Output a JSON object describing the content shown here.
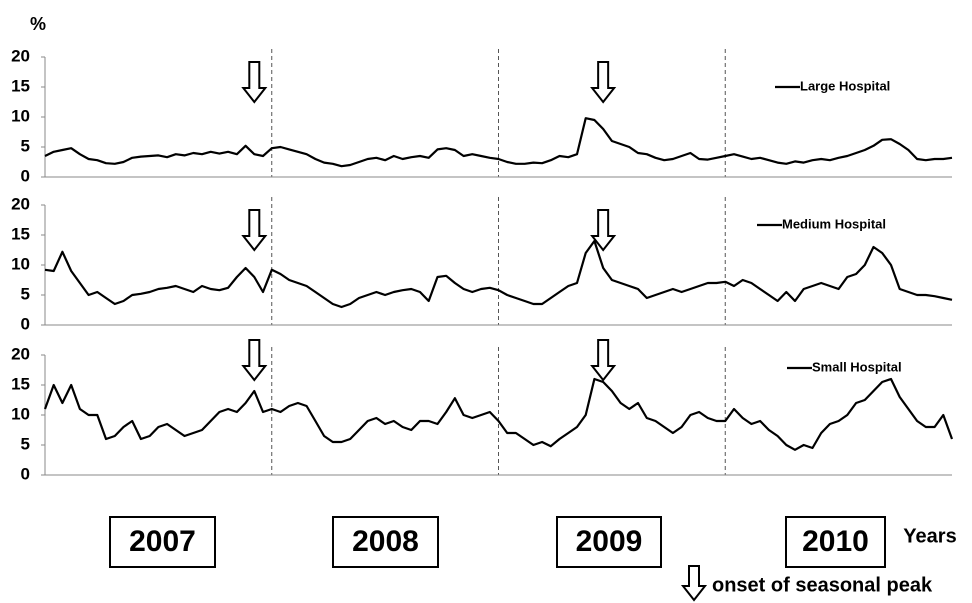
{
  "y_unit_label": "%",
  "x_label": "Years",
  "year_labels": [
    "2007",
    "2008",
    "2009",
    "2010"
  ],
  "onset_label": "onset of seasonal peak",
  "chart_data": [
    {
      "type": "line",
      "ylim": [
        0,
        20
      ],
      "yticks": [
        0,
        5,
        10,
        15,
        20
      ],
      "onset_x": [
        24,
        64
      ],
      "series": [
        {
          "name": "Large Hospital",
          "color": "#000000",
          "values": [
            3.5,
            4.2,
            4.5,
            4.8,
            3.8,
            3,
            2.8,
            2.3,
            2.2,
            2.5,
            3.2,
            3.4,
            3.5,
            3.6,
            3.3,
            3.8,
            3.6,
            4,
            3.8,
            4.2,
            3.9,
            4.2,
            3.8,
            5.2,
            3.8,
            3.5,
            4.8,
            5,
            4.6,
            4.2,
            3.8,
            3,
            2.4,
            2.2,
            1.8,
            2,
            2.5,
            3,
            3.2,
            2.8,
            3.5,
            3,
            3.3,
            3.5,
            3.2,
            4.6,
            4.8,
            4.5,
            3.5,
            3.8,
            3.5,
            3.2,
            3,
            2.5,
            2.2,
            2.2,
            2.4,
            2.3,
            2.8,
            3.5,
            3.3,
            3.8,
            9.8,
            9.5,
            8,
            6,
            5.5,
            5,
            4,
            3.8,
            3.2,
            2.8,
            3,
            3.5,
            4,
            3,
            2.9,
            3.2,
            3.5,
            3.8,
            3.4,
            3,
            3.2,
            2.8,
            2.4,
            2.2,
            2.6,
            2.4,
            2.8,
            3,
            2.8,
            3.2,
            3.5,
            4,
            4.5,
            5.2,
            6.2,
            6.3,
            5.5,
            4.5,
            3,
            2.8,
            3,
            3,
            3.2
          ]
        }
      ]
    },
    {
      "type": "line",
      "ylim": [
        0,
        20
      ],
      "yticks": [
        0,
        5,
        10,
        15,
        20
      ],
      "onset_x": [
        24,
        64
      ],
      "series": [
        {
          "name": "Medium Hospital",
          "color": "#000000",
          "values": [
            9.2,
            9,
            12.2,
            9,
            7,
            5,
            5.5,
            4.5,
            3.5,
            4,
            5,
            5.2,
            5.5,
            6,
            6.2,
            6.5,
            6,
            5.5,
            6.5,
            6,
            5.8,
            6.2,
            8,
            9.5,
            8,
            5.5,
            9.2,
            8.5,
            7.5,
            7,
            6.5,
            5.5,
            4.5,
            3.5,
            3,
            3.5,
            4.5,
            5,
            5.5,
            5,
            5.5,
            5.8,
            6,
            5.5,
            4,
            8,
            8.2,
            7,
            6,
            5.5,
            6,
            6.2,
            5.8,
            5,
            4.5,
            4,
            3.5,
            3.5,
            4.5,
            5.5,
            6.5,
            7,
            12,
            14,
            9.5,
            7.5,
            7,
            6.5,
            6,
            4.5,
            5,
            5.5,
            6,
            5.5,
            6,
            6.5,
            7,
            7,
            7.2,
            6.5,
            7.5,
            7,
            6,
            5,
            4,
            5.5,
            4,
            6,
            6.5,
            7,
            6.5,
            6,
            8,
            8.5,
            10,
            13,
            12,
            10,
            6,
            5.5,
            5,
            5,
            4.8,
            4.5,
            4.2
          ]
        }
      ]
    },
    {
      "type": "line",
      "ylim": [
        0,
        20
      ],
      "yticks": [
        0,
        5,
        10,
        15,
        20
      ],
      "onset_x": [
        24,
        64
      ],
      "series": [
        {
          "name": "Small Hospital",
          "color": "#000000",
          "values": [
            11,
            15,
            12,
            15,
            11,
            10,
            10,
            6,
            6.5,
            8,
            9,
            6,
            6.5,
            8,
            8.5,
            7.5,
            6.5,
            7,
            7.5,
            9,
            10.5,
            11,
            10.5,
            12,
            14,
            10.5,
            11,
            10.5,
            11.5,
            12,
            11.5,
            9,
            6.5,
            5.5,
            5.5,
            6,
            7.5,
            9,
            9.5,
            8.5,
            9,
            8,
            7.5,
            9,
            9,
            8.5,
            10.5,
            12.8,
            10,
            9.5,
            10,
            10.5,
            9,
            7,
            7,
            6,
            5,
            5.5,
            4.8,
            6,
            7,
            8,
            10,
            16,
            15.5,
            14,
            12,
            11,
            12,
            9.5,
            9,
            8,
            7,
            8,
            10,
            10.5,
            9.5,
            9,
            9,
            11,
            9.5,
            8.5,
            9,
            7.5,
            6.5,
            5,
            4.2,
            5,
            4.5,
            7,
            8.5,
            9,
            10,
            12,
            12.5,
            14,
            15.5,
            16,
            13,
            11,
            9,
            8,
            8,
            10,
            6
          ]
        }
      ]
    }
  ]
}
